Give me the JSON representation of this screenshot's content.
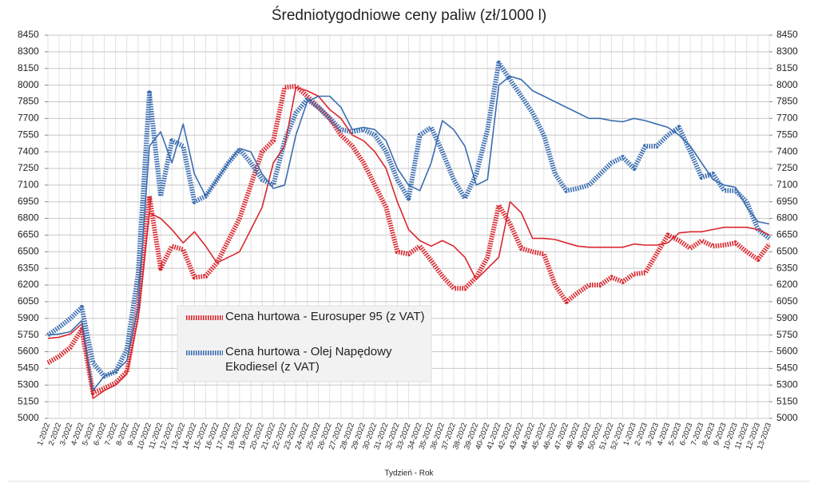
{
  "chart_data": {
    "type": "line",
    "title": "Średniotygodniowe ceny paliw (zł/1000 l)",
    "x_label": "Tydzień - Rok",
    "categories": [
      "1-2022",
      "2-2022",
      "3-2022",
      "4-2022",
      "5-2022",
      "6-2022",
      "7-2022",
      "8-2022",
      "9-2022",
      "10-2022",
      "11-2022",
      "12-2022",
      "13-2022",
      "14-2022",
      "15-2022",
      "16-2022",
      "17-2022",
      "18-2022",
      "19-2022",
      "20-2022",
      "21-2022",
      "22-2022",
      "23-2022",
      "24-2022",
      "25-2022",
      "26-2022",
      "27-2022",
      "28-2022",
      "29-2022",
      "30-2022",
      "31-2022",
      "32-2022",
      "33-2022",
      "34-2022",
      "35-2022",
      "36-2022",
      "37-2022",
      "38-2022",
      "39-2022",
      "40-2022",
      "41-2022",
      "42-2022",
      "43-2022",
      "44-2022",
      "45-2022",
      "46-2022",
      "47-2022",
      "48-2022",
      "49-2022",
      "50-2022",
      "51-2022",
      "52-2022",
      "1-2023",
      "2-2023",
      "3-2023",
      "4-2023",
      "5-2023",
      "6-2023",
      "7-2023",
      "8-2023",
      "9-2023",
      "10-2023",
      "11-2023",
      "12-2023",
      "13-2023"
    ],
    "series": [
      {
        "name": "Cena hurtowa  - Eurosuper 95 (z VAT)",
        "color": "#d9272e",
        "style": "hatched",
        "values": [
          5500,
          5560,
          5640,
          5800,
          5230,
          5270,
          5320,
          5420,
          6000,
          7000,
          6350,
          6550,
          6520,
          6270,
          6280,
          6400,
          6600,
          6800,
          7100,
          7400,
          7500,
          7980,
          7990,
          7900,
          7800,
          7700,
          7550,
          7450,
          7300,
          7100,
          6900,
          6500,
          6480,
          6550,
          6420,
          6280,
          6170,
          6170,
          6270,
          6450,
          6920,
          6750,
          6530,
          6500,
          6480,
          6200,
          6050,
          6130,
          6200,
          6200,
          6270,
          6230,
          6300,
          6310,
          6480,
          6650,
          6600,
          6530,
          6600,
          6550,
          6560,
          6580,
          6500,
          6430,
          6570
        ]
      },
      {
        "name": "Cena hurtowa - Olej Napędowy Ekodiesel (z VAT)",
        "color": "#3a6db0",
        "style": "hatched",
        "values": [
          5750,
          5820,
          5900,
          6000,
          5500,
          5380,
          5420,
          5620,
          6300,
          7930,
          7000,
          7500,
          7450,
          6950,
          7000,
          7150,
          7300,
          7420,
          7300,
          7150,
          7100,
          7500,
          7750,
          7870,
          7800,
          7700,
          7600,
          7580,
          7600,
          7550,
          7400,
          7150,
          6980,
          7550,
          7620,
          7400,
          7150,
          6980,
          7200,
          7600,
          8200,
          8050,
          7900,
          7750,
          7550,
          7200,
          7050,
          7070,
          7100,
          7200,
          7300,
          7350,
          7250,
          7450,
          7450,
          7550,
          7620,
          7400,
          7170,
          7200,
          7050,
          7050,
          6950,
          6700,
          6620
        ]
      },
      {
        "color": "#d9272e",
        "style": "thin",
        "values": [
          5720,
          5730,
          5760,
          5850,
          5180,
          5250,
          5300,
          5400,
          5900,
          6850,
          6800,
          6700,
          6580,
          6680,
          6550,
          6400,
          6450,
          6500,
          6700,
          6900,
          7300,
          7450,
          7980,
          7950,
          7900,
          7780,
          7700,
          7550,
          7500,
          7400,
          7250,
          6950,
          6700,
          6600,
          6550,
          6600,
          6550,
          6450,
          6250,
          6350,
          6450,
          6950,
          6850,
          6620,
          6620,
          6610,
          6580,
          6550,
          6540,
          6540,
          6540,
          6540,
          6570,
          6560,
          6560,
          6580,
          6670,
          6680,
          6680,
          6700,
          6720,
          6720,
          6720,
          6700,
          6650
        ]
      },
      {
        "color": "#3a6db0",
        "style": "thin",
        "values": [
          5750,
          5760,
          5780,
          5880,
          5250,
          5380,
          5420,
          5520,
          6000,
          7450,
          7580,
          7300,
          7650,
          7200,
          7000,
          7150,
          7300,
          7430,
          7400,
          7200,
          7070,
          7100,
          7550,
          7850,
          7900,
          7900,
          7800,
          7600,
          7620,
          7600,
          7500,
          7250,
          7100,
          7050,
          7300,
          7680,
          7600,
          7450,
          7100,
          7150,
          8000,
          8080,
          8050,
          7950,
          7900,
          7850,
          7800,
          7750,
          7700,
          7700,
          7680,
          7670,
          7700,
          7680,
          7650,
          7620,
          7550,
          7450,
          7300,
          7150,
          7100,
          7080,
          6900,
          6770,
          6750
        ]
      }
    ],
    "ylim": [
      5000,
      8450
    ],
    "yticks": [
      5000,
      5150,
      5300,
      5450,
      5600,
      5750,
      5900,
      6050,
      6200,
      6350,
      6500,
      6650,
      6800,
      6950,
      7100,
      7250,
      7400,
      7550,
      7700,
      7850,
      8000,
      8150,
      8300,
      8450
    ],
    "y2lim": [
      5000,
      8450
    ],
    "y2ticks": [
      5000,
      5150,
      5300,
      5450,
      5600,
      5750,
      5900,
      6050,
      6200,
      6350,
      6500,
      6650,
      6800,
      6950,
      7100,
      7250,
      7400,
      7550,
      7700,
      7850,
      8000,
      8150,
      8300,
      8450
    ],
    "grid": true,
    "legend": "lower-left"
  }
}
